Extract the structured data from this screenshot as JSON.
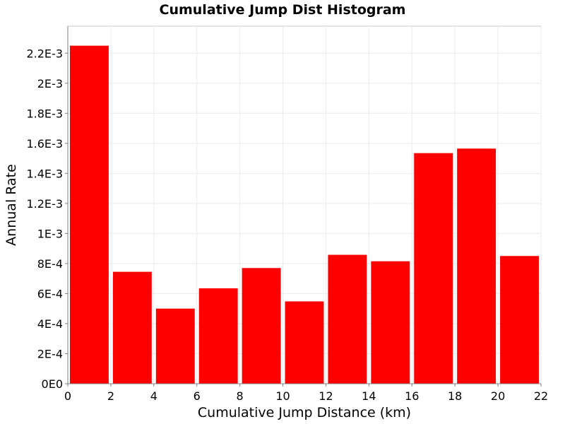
{
  "chart_data": {
    "type": "bar",
    "title": "Cumulative Jump Dist Histogram",
    "xlabel": "Cumulative Jump Distance (km)",
    "ylabel": "Annual Rate",
    "x_ticks": [
      "0",
      "2",
      "4",
      "6",
      "8",
      "10",
      "12",
      "14",
      "16",
      "18",
      "20",
      "22"
    ],
    "y_ticks": [
      "0E0",
      "2E-4",
      "4E-4",
      "6E-4",
      "8E-4",
      "1E-3",
      "1.2E-3",
      "1.4E-3",
      "1.6E-3",
      "1.8E-3",
      "2E-3",
      "2.2E-3"
    ],
    "xlim": [
      0,
      22
    ],
    "ylim": [
      0,
      0.00238
    ],
    "grid": true,
    "bar_color": "#ff0000",
    "bins": [
      {
        "x_start": 0,
        "x_end": 2,
        "value": 0.00225
      },
      {
        "x_start": 2,
        "x_end": 4,
        "value": 0.000745
      },
      {
        "x_start": 4,
        "x_end": 6,
        "value": 0.0005
      },
      {
        "x_start": 6,
        "x_end": 8,
        "value": 0.000635
      },
      {
        "x_start": 8,
        "x_end": 10,
        "value": 0.00077
      },
      {
        "x_start": 10,
        "x_end": 12,
        "value": 0.000548
      },
      {
        "x_start": 12,
        "x_end": 14,
        "value": 0.000858
      },
      {
        "x_start": 14,
        "x_end": 16,
        "value": 0.000815
      },
      {
        "x_start": 16,
        "x_end": 18,
        "value": 0.001535
      },
      {
        "x_start": 18,
        "x_end": 20,
        "value": 0.001565
      },
      {
        "x_start": 20,
        "x_end": 22,
        "value": 0.00085
      }
    ]
  }
}
